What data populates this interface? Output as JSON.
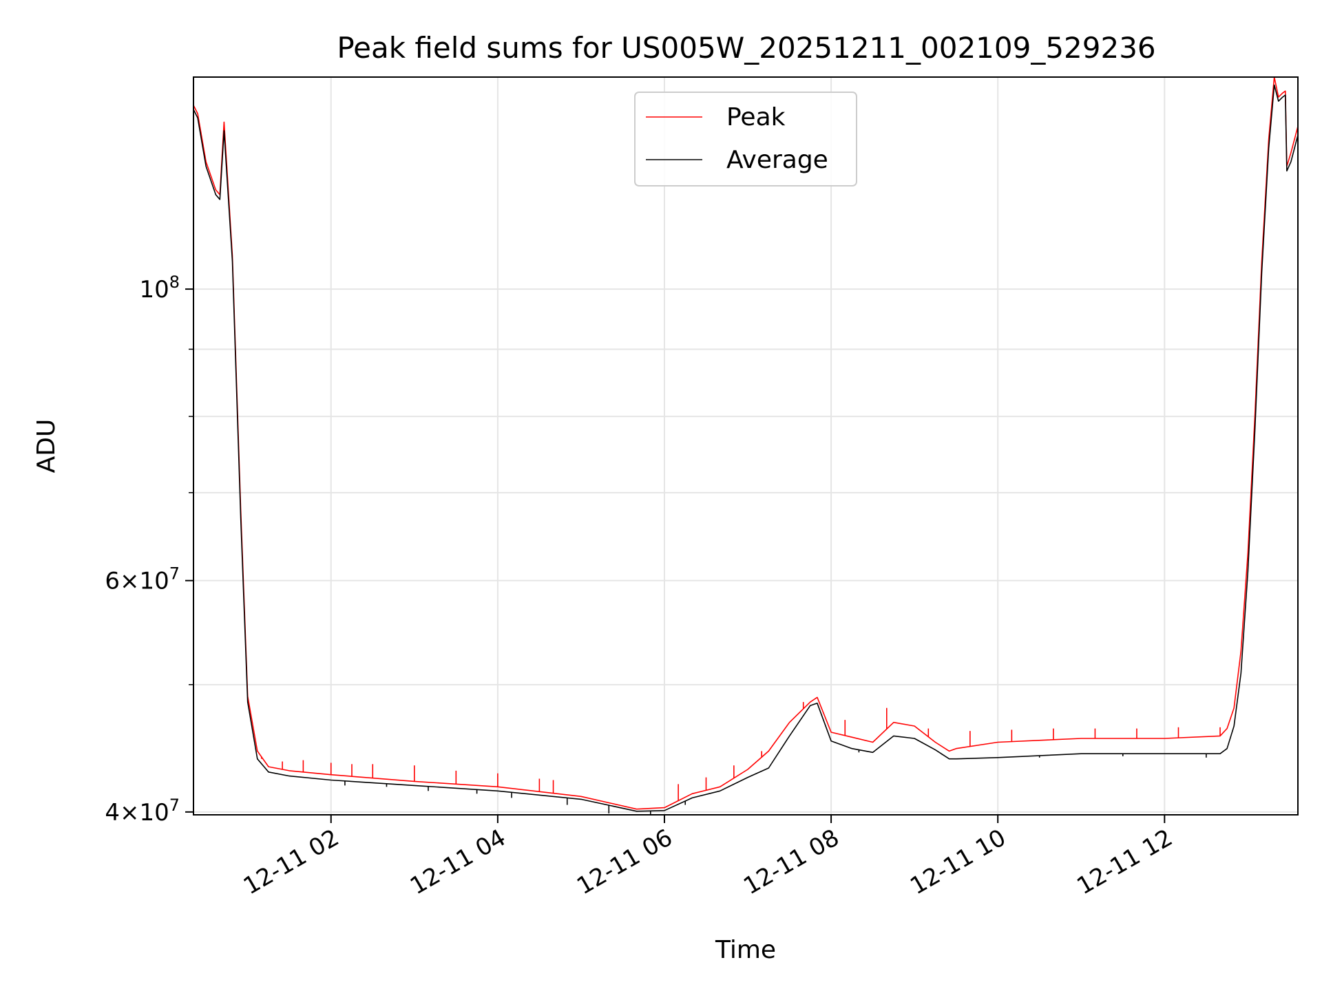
{
  "chart_data": {
    "type": "line",
    "title": "Peak field sums for US005W_20251211_002109_529236",
    "xlabel": "Time",
    "ylabel": "ADU",
    "x_scale": "time",
    "y_scale": "log",
    "xlim": [
      "2025-12-11 00:21",
      "2025-12-11 13:36"
    ],
    "ylim": [
      39800000,
      145000000
    ],
    "x_ticks": [
      "12-11 02",
      "12-11 04",
      "12-11 06",
      "12-11 08",
      "12-11 10",
      "12-11 12"
    ],
    "x_tick_times": [
      "2025-12-11 02:00",
      "2025-12-11 04:00",
      "2025-12-11 06:00",
      "2025-12-11 08:00",
      "2025-12-11 10:00",
      "2025-12-11 12:00"
    ],
    "y_ticks": [
      {
        "value": 40000000,
        "mantissa": "4",
        "exponent": "7"
      },
      {
        "value": 60000000,
        "mantissa": "6",
        "exponent": "7"
      },
      {
        "value": 100000000,
        "mantissa": "",
        "exponent": "8"
      }
    ],
    "y_minor_ticks": [
      50000000,
      70000000,
      80000000,
      90000000
    ],
    "grid": true,
    "legend_position": "upper center",
    "series": [
      {
        "name": "Peak",
        "color": "#ff0000",
        "x": [
          "2025-12-11 00:21",
          "2025-12-11 00:24",
          "2025-12-11 00:30",
          "2025-12-11 00:37",
          "2025-12-11 00:40",
          "2025-12-11 00:43",
          "2025-12-11 00:49",
          "2025-12-11 00:55",
          "2025-12-11 01:00",
          "2025-12-11 01:07",
          "2025-12-11 01:15",
          "2025-12-11 01:30",
          "2025-12-11 02:00",
          "2025-12-11 03:00",
          "2025-12-11 04:00",
          "2025-12-11 05:00",
          "2025-12-11 05:40",
          "2025-12-11 06:00",
          "2025-12-11 06:20",
          "2025-12-11 06:40",
          "2025-12-11 07:00",
          "2025-12-11 07:15",
          "2025-12-11 07:30",
          "2025-12-11 07:45",
          "2025-12-11 07:50",
          "2025-12-11 08:00",
          "2025-12-11 08:15",
          "2025-12-11 08:30",
          "2025-12-11 08:45",
          "2025-12-11 09:00",
          "2025-12-11 09:15",
          "2025-12-11 09:25",
          "2025-12-11 09:30",
          "2025-12-11 10:00",
          "2025-12-11 11:00",
          "2025-12-11 12:00",
          "2025-12-11 12:40",
          "2025-12-11 12:45",
          "2025-12-11 12:50",
          "2025-12-11 12:55",
          "2025-12-11 13:00",
          "2025-12-11 13:05",
          "2025-12-11 13:10",
          "2025-12-11 13:15",
          "2025-12-11 13:19",
          "2025-12-11 13:22",
          "2025-12-11 13:25",
          "2025-12-11 13:27",
          "2025-12-11 13:28",
          "2025-12-11 13:31",
          "2025-12-11 13:36"
        ],
        "values": [
          138000000,
          136000000,
          125000000,
          119000000,
          118000000,
          134000000,
          106000000,
          68000000,
          49000000,
          44500000,
          43300000,
          43000000,
          42700000,
          42200000,
          41800000,
          41100000,
          40200000,
          40300000,
          41300000,
          41800000,
          43100000,
          44500000,
          46800000,
          48500000,
          48900000,
          46000000,
          45600000,
          45200000,
          46800000,
          46500000,
          45200000,
          44500000,
          44700000,
          45200000,
          45500000,
          45500000,
          45700000,
          46300000,
          48000000,
          53000000,
          63000000,
          80000000,
          105000000,
          130000000,
          145000000,
          140000000,
          141000000,
          141500000,
          124000000,
          127000000,
          133000000
        ],
        "spikes": {
          "x": [
            "2025-12-11 01:10",
            "2025-12-11 01:25",
            "2025-12-11 01:40",
            "2025-12-11 02:00",
            "2025-12-11 02:15",
            "2025-12-11 02:30",
            "2025-12-11 03:00",
            "2025-12-11 03:30",
            "2025-12-11 04:00",
            "2025-12-11 04:30",
            "2025-12-11 04:40",
            "2025-12-11 06:10",
            "2025-12-11 06:30",
            "2025-12-11 06:50",
            "2025-12-11 07:10",
            "2025-12-11 07:40",
            "2025-12-11 08:10",
            "2025-12-11 08:40",
            "2025-12-11 09:10",
            "2025-12-11 09:40",
            "2025-12-11 10:10",
            "2025-12-11 10:40",
            "2025-12-11 11:10",
            "2025-12-11 11:40",
            "2025-12-11 12:10",
            "2025-12-11 12:40"
          ],
          "values": [
            43900000,
            43700000,
            43800000,
            43600000,
            43500000,
            43500000,
            43400000,
            43000000,
            42800000,
            42400000,
            42300000,
            42000000,
            42500000,
            43400000,
            44500000,
            48500000,
            47000000,
            48000000,
            46300000,
            46100000,
            46200000,
            46300000,
            46300000,
            46300000,
            46400000,
            46400000
          ]
        }
      },
      {
        "name": "Average",
        "color": "#000000",
        "x": [
          "2025-12-11 00:21",
          "2025-12-11 00:24",
          "2025-12-11 00:30",
          "2025-12-11 00:37",
          "2025-12-11 00:40",
          "2025-12-11 00:43",
          "2025-12-11 00:49",
          "2025-12-11 00:55",
          "2025-12-11 01:00",
          "2025-12-11 01:07",
          "2025-12-11 01:15",
          "2025-12-11 01:30",
          "2025-12-11 02:00",
          "2025-12-11 03:00",
          "2025-12-11 04:00",
          "2025-12-11 05:00",
          "2025-12-11 05:40",
          "2025-12-11 06:00",
          "2025-12-11 06:20",
          "2025-12-11 06:40",
          "2025-12-11 07:00",
          "2025-12-11 07:15",
          "2025-12-11 07:30",
          "2025-12-11 07:45",
          "2025-12-11 07:50",
          "2025-12-11 08:00",
          "2025-12-11 08:15",
          "2025-12-11 08:30",
          "2025-12-11 08:45",
          "2025-12-11 09:00",
          "2025-12-11 09:15",
          "2025-12-11 09:25",
          "2025-12-11 09:30",
          "2025-12-11 10:00",
          "2025-12-11 11:00",
          "2025-12-11 12:00",
          "2025-12-11 12:40",
          "2025-12-11 12:45",
          "2025-12-11 12:50",
          "2025-12-11 12:55",
          "2025-12-11 13:00",
          "2025-12-11 13:05",
          "2025-12-11 13:10",
          "2025-12-11 13:15",
          "2025-12-11 13:19",
          "2025-12-11 13:22",
          "2025-12-11 13:25",
          "2025-12-11 13:27",
          "2025-12-11 13:28",
          "2025-12-11 13:31",
          "2025-12-11 13:36"
        ],
        "values": [
          137000000,
          135000000,
          124000000,
          118000000,
          117000000,
          132000000,
          105000000,
          67000000,
          48500000,
          43900000,
          42900000,
          42600000,
          42300000,
          41900000,
          41500000,
          40900000,
          40050000,
          40100000,
          41000000,
          41500000,
          42500000,
          43200000,
          45700000,
          48200000,
          48400000,
          45300000,
          44700000,
          44400000,
          45700000,
          45500000,
          44600000,
          43900000,
          43900000,
          44000000,
          44300000,
          44300000,
          44300000,
          44700000,
          46500000,
          51000000,
          61000000,
          78000000,
          103000000,
          128000000,
          143000000,
          139000000,
          140000000,
          140500000,
          123000000,
          125000000,
          131000000
        ],
        "dips": {
          "x": [
            "2025-12-11 02:10",
            "2025-12-11 02:40",
            "2025-12-11 03:10",
            "2025-12-11 03:45",
            "2025-12-11 04:10",
            "2025-12-11 04:50",
            "2025-12-11 05:20",
            "2025-12-11 05:50",
            "2025-12-11 06:15",
            "2025-12-11 08:20",
            "2025-12-11 09:20",
            "2025-12-11 10:30",
            "2025-12-11 11:30",
            "2025-12-11 12:30"
          ],
          "values": [
            41900000,
            41800000,
            41500000,
            41300000,
            41000000,
            40500000,
            39900000,
            39850000,
            40500000,
            44400000,
            44200000,
            44000000,
            44100000,
            44000000
          ]
        }
      }
    ]
  }
}
